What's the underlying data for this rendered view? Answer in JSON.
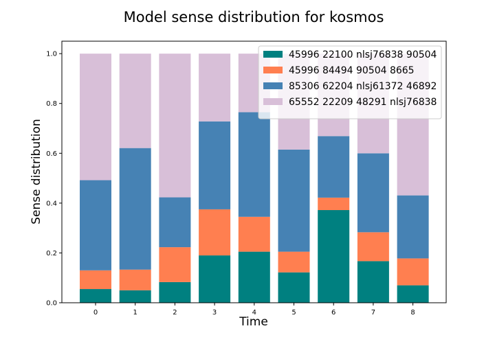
{
  "chart_data": {
    "type": "bar",
    "stacked": true,
    "title": "Model sense distribution for kosmos",
    "xlabel": "Time",
    "ylabel": "Sense distribution",
    "categories": [
      "0",
      "1",
      "2",
      "3",
      "4",
      "5",
      "6",
      "7",
      "8"
    ],
    "ylim": [
      0,
      1.05
    ],
    "yticks": [
      "0.0",
      "0.2",
      "0.4",
      "0.6",
      "0.8",
      "1.0"
    ],
    "legend_position": "top-right",
    "series": [
      {
        "name": "45996 22100 nlsj76838 90504",
        "color": "#008080",
        "values": [
          0.055,
          0.05,
          0.083,
          0.19,
          0.205,
          0.122,
          0.372,
          0.167,
          0.07
        ]
      },
      {
        "name": "45996 84494 90504 8665",
        "color": "#ff7f50",
        "values": [
          0.075,
          0.083,
          0.14,
          0.185,
          0.14,
          0.083,
          0.05,
          0.116,
          0.108
        ]
      },
      {
        "name": "85306 62204 nlsj61372 46892",
        "color": "#4682b4",
        "values": [
          0.362,
          0.488,
          0.2,
          0.353,
          0.42,
          0.41,
          0.247,
          0.317,
          0.253
        ]
      },
      {
        "name": "65552 22209 48291 nlsj76838",
        "color": "#d8bfd8",
        "values": [
          0.508,
          0.379,
          0.577,
          0.272,
          0.235,
          0.385,
          0.331,
          0.4,
          0.569
        ]
      }
    ]
  }
}
